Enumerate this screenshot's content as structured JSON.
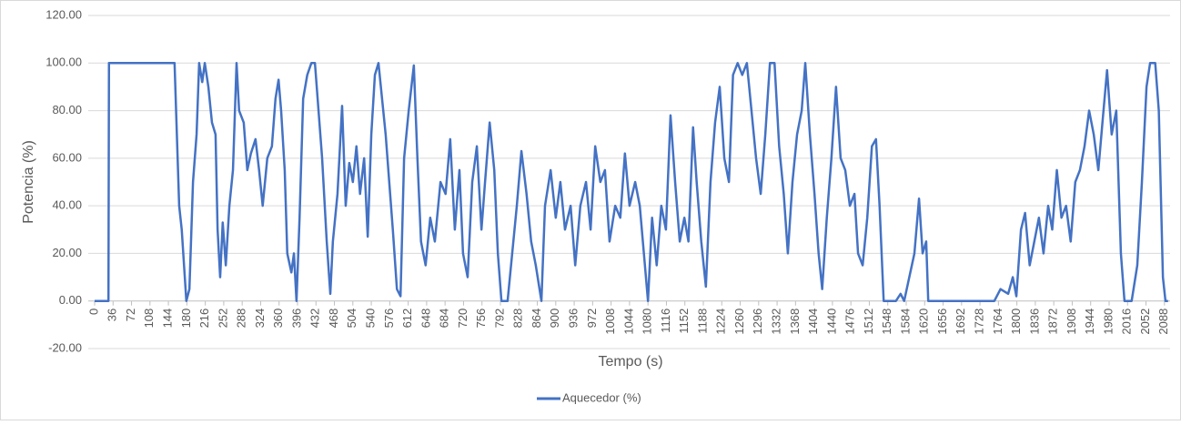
{
  "chart_data": {
    "type": "line",
    "x_label": "Tempo (s)",
    "y_label": "Potencia (%)",
    "x": [
      0,
      27,
      28,
      156,
      165,
      170,
      179,
      185,
      192,
      199,
      204,
      210,
      215,
      222,
      229,
      236,
      240,
      245,
      250,
      256,
      263,
      270,
      277,
      282,
      291,
      298,
      305,
      314,
      321,
      328,
      337,
      346,
      353,
      359,
      364,
      371,
      376,
      384,
      389,
      394,
      400,
      407,
      415,
      423,
      430,
      437,
      444,
      453,
      460,
      465,
      474,
      483,
      490,
      497,
      504,
      511,
      518,
      526,
      533,
      540,
      547,
      554,
      561,
      568,
      575,
      582,
      590,
      597,
      604,
      613,
      623,
      630,
      637,
      646,
      655,
      664,
      675,
      685,
      694,
      703,
      712,
      719,
      728,
      737,
      746,
      755,
      762,
      771,
      780,
      787,
      794,
      806,
      815,
      824,
      833,
      843,
      852,
      861,
      872,
      879,
      890,
      900,
      909,
      918,
      929,
      938,
      948,
      959,
      968,
      977,
      987,
      996,
      1005,
      1016,
      1026,
      1035,
      1044,
      1055,
      1064,
      1072,
      1080,
      1088,
      1097,
      1106,
      1115,
      1124,
      1133,
      1142,
      1151,
      1159,
      1168,
      1175,
      1184,
      1193,
      1202,
      1211,
      1220,
      1229,
      1238,
      1246,
      1255,
      1264,
      1273,
      1282,
      1291,
      1300,
      1309,
      1318,
      1327,
      1336,
      1345,
      1353,
      1362,
      1371,
      1380,
      1387,
      1396,
      1405,
      1413,
      1420,
      1429,
      1438,
      1447,
      1456,
      1465,
      1474,
      1483,
      1490,
      1499,
      1508,
      1517,
      1525,
      1532,
      1540,
      1564,
      1573,
      1580,
      1600,
      1609,
      1616,
      1623,
      1627,
      1756,
      1768,
      1783,
      1792,
      1799,
      1808,
      1816,
      1825,
      1834,
      1843,
      1852,
      1861,
      1869,
      1878,
      1887,
      1896,
      1905,
      1914,
      1923,
      1932,
      1941,
      1950,
      1959,
      1967,
      1976,
      1985,
      1994,
      2003,
      2010,
      2024,
      2035,
      2044,
      2053,
      2060,
      2070,
      2077,
      2085,
      2090,
      2095
    ],
    "series": [
      {
        "name": "Aquecedor (%)",
        "color": "#4472c4",
        "values": [
          0,
          0,
          100,
          100,
          40,
          30,
          0,
          5,
          50,
          70,
          100,
          92,
          100,
          90,
          75,
          70,
          30,
          10,
          33,
          15,
          40,
          55,
          100,
          80,
          75,
          55,
          62,
          68,
          55,
          40,
          60,
          65,
          85,
          93,
          80,
          55,
          20,
          12,
          20,
          0,
          35,
          85,
          95,
          100,
          100,
          80,
          60,
          25,
          3,
          25,
          45,
          82,
          40,
          58,
          50,
          65,
          45,
          60,
          27,
          70,
          95,
          100,
          85,
          70,
          50,
          30,
          5,
          2,
          60,
          80,
          99,
          60,
          25,
          15,
          35,
          25,
          50,
          45,
          68,
          30,
          55,
          20,
          10,
          50,
          65,
          30,
          50,
          75,
          55,
          20,
          0,
          0,
          20,
          40,
          63,
          45,
          25,
          15,
          0,
          40,
          55,
          35,
          50,
          30,
          40,
          15,
          40,
          50,
          30,
          65,
          50,
          55,
          25,
          40,
          35,
          62,
          40,
          50,
          40,
          20,
          0,
          35,
          15,
          40,
          30,
          78,
          50,
          25,
          35,
          25,
          73,
          50,
          25,
          6,
          50,
          75,
          90,
          60,
          50,
          95,
          100,
          95,
          100,
          80,
          60,
          45,
          70,
          100,
          100,
          65,
          45,
          20,
          50,
          70,
          80,
          100,
          70,
          45,
          20,
          5,
          35,
          60,
          90,
          60,
          55,
          40,
          45,
          20,
          15,
          35,
          65,
          68,
          40,
          0,
          0,
          3,
          0,
          20,
          43,
          20,
          25,
          0,
          0,
          5,
          3,
          10,
          2,
          30,
          37,
          15,
          25,
          35,
          20,
          40,
          30,
          55,
          35,
          40,
          25,
          50,
          55,
          65,
          80,
          70,
          55,
          75,
          97,
          70,
          80,
          20,
          0,
          0,
          15,
          50,
          90,
          100,
          100,
          80,
          10,
          0,
          0
        ]
      }
    ],
    "xlim": [
      0,
      2099
    ],
    "xticks": [
      0,
      36,
      72,
      108,
      144,
      180,
      216,
      252,
      288,
      324,
      360,
      396,
      432,
      468,
      504,
      540,
      576,
      612,
      648,
      684,
      720,
      756,
      792,
      828,
      864,
      900,
      936,
      972,
      1008,
      1044,
      1080,
      1116,
      1152,
      1188,
      1224,
      1260,
      1296,
      1332,
      1368,
      1404,
      1440,
      1476,
      1512,
      1548,
      1584,
      1620,
      1656,
      1692,
      1728,
      1764,
      1800,
      1836,
      1872,
      1908,
      1944,
      1980,
      2016,
      2052,
      2088
    ],
    "ylim": [
      -20,
      120
    ],
    "yticks": [
      {
        "value": -20,
        "label": "-20.00"
      },
      {
        "value": 0,
        "label": "0.00"
      },
      {
        "value": 20,
        "label": "20.00"
      },
      {
        "value": 40,
        "label": "40.00"
      },
      {
        "value": 60,
        "label": "60.00"
      },
      {
        "value": 80,
        "label": "80.00"
      },
      {
        "value": 100,
        "label": "100.00"
      },
      {
        "value": 120,
        "label": "120.00"
      }
    ],
    "grid": true,
    "legend": "bottom"
  }
}
